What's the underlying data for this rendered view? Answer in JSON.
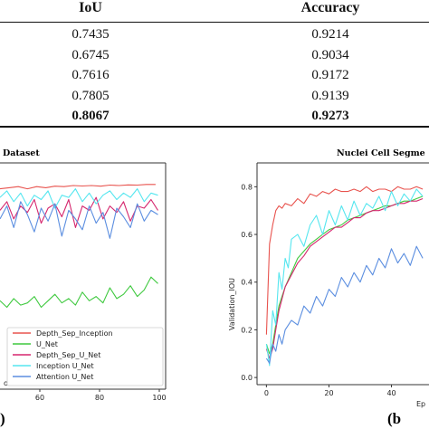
{
  "table": {
    "columns": [
      "IoU",
      "Accuracy"
    ],
    "rows": [
      {
        "iou": "0.7435",
        "accuracy": "0.9214",
        "bold": false
      },
      {
        "iou": "0.6745",
        "accuracy": "0.9034",
        "bold": false
      },
      {
        "iou": "0.7616",
        "accuracy": "0.9172",
        "bold": false
      },
      {
        "iou": "0.7805",
        "accuracy": "0.9139",
        "bold": false
      },
      {
        "iou": "0.8067",
        "accuracy": "0.9273",
        "bold": true
      }
    ]
  },
  "panel_a": {
    "title_fragment": "Dataset",
    "xlabel_fragment": "ochs",
    "x_ticks": [
      "60",
      "80",
      "100"
    ],
    "panel_label": ")"
  },
  "panel_b": {
    "title_fragment": "Nuclei Cell Segme",
    "ylabel": "Validation_IOU",
    "xlabel_fragment": "Ep",
    "x_ticks": [
      "0",
      "20",
      "40"
    ],
    "y_ticks": [
      "0.0",
      "0.2",
      "0.4",
      "0.6",
      "0.8"
    ],
    "panel_label": "(b"
  },
  "legend": [
    {
      "label": "Depth_Sep_Inception",
      "color": "#e8534e"
    },
    {
      "label": "U_Net",
      "color": "#3fc93f"
    },
    {
      "label": "Depth_Sep_U_Net",
      "color": "#d5276e"
    },
    {
      "label": "Inception U_Net",
      "color": "#55e6ef"
    },
    {
      "label": "Attention U_Net",
      "color": "#5b8ee0"
    }
  ],
  "chart_data": [
    {
      "type": "line",
      "title": "Dataset",
      "xlabel": "ochs",
      "xlim": [
        30,
        100
      ],
      "ylim": [
        0,
        1
      ],
      "series": [
        {
          "name": "Depth_Sep_Inception",
          "color": "#e8534e",
          "x": [
            30,
            34,
            38,
            42,
            46,
            50,
            54,
            58,
            62,
            66,
            70,
            74,
            78,
            82,
            86,
            90,
            94,
            98
          ],
          "y": [
            0.88,
            0.885,
            0.89,
            0.88,
            0.89,
            0.885,
            0.892,
            0.89,
            0.895,
            0.893,
            0.895,
            0.892,
            0.897,
            0.895,
            0.898,
            0.897,
            0.9,
            0.9
          ]
        },
        {
          "name": "U_Net",
          "color": "#3fc93f",
          "x": [
            30,
            33,
            36,
            39,
            42,
            45,
            48,
            51,
            54,
            57,
            60,
            63,
            66,
            69,
            72,
            75,
            78,
            81,
            84,
            87,
            90,
            93,
            96,
            99
          ],
          "y": [
            0.36,
            0.33,
            0.37,
            0.34,
            0.35,
            0.38,
            0.33,
            0.36,
            0.39,
            0.35,
            0.37,
            0.34,
            0.4,
            0.36,
            0.38,
            0.35,
            0.42,
            0.37,
            0.39,
            0.43,
            0.38,
            0.41,
            0.47,
            0.44
          ]
        },
        {
          "name": "Depth_Sep_U_Net",
          "color": "#d5276e",
          "x": [
            30,
            33,
            36,
            39,
            42,
            45,
            48,
            51,
            54,
            57,
            60,
            63,
            66,
            69,
            72,
            75,
            78,
            81,
            84,
            87,
            90,
            93,
            96,
            99
          ],
          "y": [
            0.78,
            0.82,
            0.74,
            0.8,
            0.77,
            0.83,
            0.72,
            0.79,
            0.81,
            0.75,
            0.83,
            0.7,
            0.8,
            0.78,
            0.84,
            0.74,
            0.8,
            0.77,
            0.82,
            0.73,
            0.8,
            0.79,
            0.83,
            0.78
          ]
        },
        {
          "name": "Inception U_Net",
          "color": "#55e6ef",
          "x": [
            30,
            33,
            36,
            39,
            42,
            45,
            48,
            51,
            54,
            57,
            60,
            63,
            66,
            69,
            72,
            75,
            78,
            81,
            84,
            87,
            90,
            93,
            96,
            99
          ],
          "y": [
            0.84,
            0.87,
            0.82,
            0.86,
            0.8,
            0.85,
            0.83,
            0.87,
            0.79,
            0.85,
            0.84,
            0.88,
            0.82,
            0.86,
            0.81,
            0.85,
            0.87,
            0.83,
            0.86,
            0.84,
            0.88,
            0.82,
            0.86,
            0.85
          ]
        },
        {
          "name": "Attention U_Net",
          "color": "#5b8ee0",
          "x": [
            30,
            33,
            36,
            39,
            42,
            45,
            48,
            51,
            54,
            57,
            60,
            63,
            66,
            69,
            72,
            75,
            78,
            81,
            84,
            87,
            90,
            93,
            96,
            99
          ],
          "y": [
            0.74,
            0.8,
            0.7,
            0.82,
            0.76,
            0.68,
            0.79,
            0.73,
            0.81,
            0.66,
            0.78,
            0.74,
            0.69,
            0.8,
            0.72,
            0.77,
            0.65,
            0.79,
            0.75,
            0.7,
            0.81,
            0.73,
            0.78,
            0.76
          ]
        }
      ]
    },
    {
      "type": "line",
      "title": "Nuclei Cell Segme",
      "xlabel": "Ep",
      "ylabel": "Validation_IOU",
      "xlim": [
        -3,
        52
      ],
      "ylim": [
        -0.03,
        0.9
      ],
      "series": [
        {
          "name": "Depth_Sep_Inception",
          "color": "#e8534e",
          "x": [
            0,
            1,
            2,
            3,
            4,
            5,
            6,
            8,
            10,
            12,
            14,
            16,
            18,
            20,
            22,
            24,
            26,
            28,
            30,
            32,
            34,
            36,
            38,
            40,
            42,
            44,
            46,
            48,
            50
          ],
          "y": [
            0.18,
            0.56,
            0.64,
            0.7,
            0.72,
            0.71,
            0.73,
            0.72,
            0.75,
            0.73,
            0.77,
            0.76,
            0.78,
            0.77,
            0.79,
            0.78,
            0.78,
            0.79,
            0.78,
            0.8,
            0.78,
            0.79,
            0.79,
            0.78,
            0.8,
            0.79,
            0.79,
            0.8,
            0.79
          ]
        },
        {
          "name": "U_Net",
          "color": "#3fc93f",
          "x": [
            0,
            1,
            2,
            3,
            4,
            5,
            6,
            8,
            10,
            12,
            14,
            16,
            18,
            20,
            22,
            24,
            26,
            28,
            30,
            32,
            34,
            36,
            38,
            40,
            42,
            44,
            46,
            48,
            50
          ],
          "y": [
            0.14,
            0.1,
            0.14,
            0.22,
            0.3,
            0.34,
            0.38,
            0.44,
            0.5,
            0.53,
            0.56,
            0.58,
            0.6,
            0.62,
            0.63,
            0.64,
            0.66,
            0.67,
            0.68,
            0.69,
            0.7,
            0.71,
            0.72,
            0.72,
            0.73,
            0.74,
            0.74,
            0.75,
            0.76
          ]
        },
        {
          "name": "Depth_Sep_U_Net",
          "color": "#d5276e",
          "x": [
            0,
            1,
            2,
            3,
            4,
            5,
            6,
            8,
            10,
            12,
            14,
            16,
            18,
            20,
            22,
            24,
            26,
            28,
            30,
            32,
            34,
            36,
            38,
            40,
            42,
            44,
            46,
            48,
            50
          ],
          "y": [
            0.12,
            0.08,
            0.12,
            0.2,
            0.28,
            0.33,
            0.38,
            0.43,
            0.48,
            0.51,
            0.55,
            0.57,
            0.59,
            0.61,
            0.63,
            0.63,
            0.65,
            0.67,
            0.67,
            0.69,
            0.7,
            0.7,
            0.71,
            0.72,
            0.73,
            0.73,
            0.74,
            0.74,
            0.75
          ]
        },
        {
          "name": "Inception U_Net",
          "color": "#55e6ef",
          "x": [
            0,
            1,
            2,
            3,
            4,
            5,
            6,
            7,
            8,
            10,
            12,
            14,
            16,
            18,
            20,
            22,
            24,
            26,
            28,
            30,
            32,
            34,
            36,
            38,
            40,
            42,
            44,
            46,
            48,
            50
          ],
          "y": [
            0.14,
            0.05,
            0.28,
            0.22,
            0.44,
            0.37,
            0.5,
            0.46,
            0.58,
            0.6,
            0.55,
            0.64,
            0.68,
            0.6,
            0.7,
            0.64,
            0.72,
            0.66,
            0.74,
            0.68,
            0.73,
            0.71,
            0.76,
            0.7,
            0.78,
            0.72,
            0.77,
            0.74,
            0.79,
            0.76
          ]
        },
        {
          "name": "Attention U_Net",
          "color": "#5b8ee0",
          "x": [
            0,
            1,
            2,
            3,
            4,
            5,
            6,
            8,
            10,
            12,
            14,
            16,
            18,
            20,
            22,
            24,
            26,
            28,
            30,
            32,
            34,
            36,
            38,
            40,
            42,
            44,
            46,
            48,
            50
          ],
          "y": [
            0.08,
            0.06,
            0.14,
            0.11,
            0.18,
            0.14,
            0.2,
            0.24,
            0.22,
            0.3,
            0.27,
            0.34,
            0.3,
            0.37,
            0.34,
            0.42,
            0.38,
            0.44,
            0.4,
            0.47,
            0.43,
            0.5,
            0.46,
            0.54,
            0.48,
            0.52,
            0.47,
            0.55,
            0.5
          ]
        }
      ]
    }
  ]
}
